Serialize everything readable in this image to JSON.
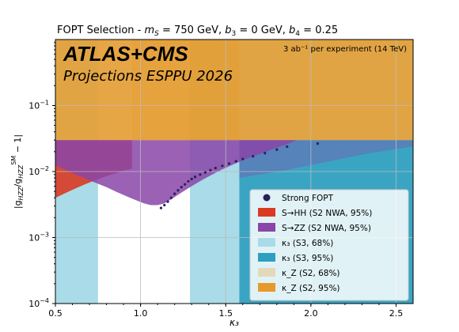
{
  "chart_data": {
    "type": "area",
    "title": "FOPT Selection - m_S = 750 GeV, b_3 = 0 GeV, b_4 = 0.25",
    "title_parts": {
      "lead": "FOPT Selection - ",
      "ms_sym": "m",
      "ms_sub": "S",
      "ms_val": " = 750 GeV, ",
      "b3_sym": "b",
      "b3_sub": "3",
      "b3_val": " = 0 GeV, ",
      "b4_sym": "b",
      "b4_sub": "4",
      "b4_val": " = 0.25"
    },
    "experiment_label": "ATLAS+CMS",
    "projection_label": "Projections ESPPU 2026",
    "luminosity_text": "3 ab⁻¹ per experiment (14 TeV)",
    "xlabel": "κ₃",
    "ylabel": "|g_HZZ/g_HZZ^SM − 1|",
    "ylabel_parts": {
      "a": "|g",
      "sub1": "HZZ",
      "b": "/g",
      "sub2": "HZZ",
      "sup2": "SM",
      "c": " − 1|"
    },
    "xlim": [
      0.5,
      2.6
    ],
    "ylim": [
      0.0001,
      1.0
    ],
    "yscale": "log",
    "grid": true,
    "x_ticks": [
      {
        "value": 0.5,
        "label": "0.5"
      },
      {
        "value": 1.0,
        "label": "1.0"
      },
      {
        "value": 1.5,
        "label": "1.5"
      },
      {
        "value": 2.0,
        "label": "2.0"
      },
      {
        "value": 2.5,
        "label": "2.5"
      }
    ],
    "y_ticks": [
      {
        "value": 0.0001,
        "base": "10",
        "exp": "−4"
      },
      {
        "value": 0.001,
        "base": "10",
        "exp": "−3"
      },
      {
        "value": 0.01,
        "base": "10",
        "exp": "−2"
      },
      {
        "value": 0.1,
        "base": "10",
        "exp": "−1"
      }
    ],
    "legend_position": "lower-right",
    "series": [
      {
        "name": "Strong FOPT",
        "kind": "scatter",
        "color": "#2a1e5c",
        "points": [
          [
            1.12,
            0.0028
          ],
          [
            1.14,
            0.0031
          ],
          [
            1.16,
            0.0035
          ],
          [
            1.18,
            0.004
          ],
          [
            1.2,
            0.0046
          ],
          [
            1.22,
            0.0052
          ],
          [
            1.24,
            0.0058
          ],
          [
            1.26,
            0.0064
          ],
          [
            1.28,
            0.0071
          ],
          [
            1.3,
            0.0077
          ],
          [
            1.32,
            0.0083
          ],
          [
            1.35,
            0.009
          ],
          [
            1.38,
            0.0097
          ],
          [
            1.41,
            0.0105
          ],
          [
            1.44,
            0.0113
          ],
          [
            1.48,
            0.0122
          ],
          [
            1.52,
            0.0132
          ],
          [
            1.56,
            0.0143
          ],
          [
            1.6,
            0.0155
          ],
          [
            1.66,
            0.017
          ],
          [
            1.73,
            0.019
          ],
          [
            1.8,
            0.0215
          ],
          [
            1.86,
            0.0238
          ],
          [
            2.04,
            0.0265
          ]
        ]
      },
      {
        "name": "S→HH  (S2 NWA, 95%)",
        "kind": "band",
        "color": "#d93a22"
      },
      {
        "name": "S→ZZ  (S2 NWA, 95%)",
        "kind": "band",
        "color": "#8a45a8"
      },
      {
        "name": "κ₃  (S3, 68%)",
        "kind": "band",
        "color": "#a9dbe8",
        "x_excluded_below": 0.75,
        "x_excluded_above": 1.29
      },
      {
        "name": "κ₃  (S3, 95%)",
        "kind": "band",
        "color": "#2e9fbf",
        "x_excluded_above": 1.58
      },
      {
        "name": "κ_Z  (S2, 68%)",
        "kind": "band",
        "color": "#e3d9b8",
        "y_excluded_above": 0.03
      },
      {
        "name": "κ_Z  (S2, 95%)",
        "kind": "band",
        "color": "#e59a2b",
        "y_excluded_above": 0.03
      }
    ],
    "legend": [
      {
        "label": "Strong FOPT",
        "marker": "dot",
        "color": "#2a1e5c"
      },
      {
        "label": "S→HH  (S2 NWA, 95%)",
        "marker": "rect",
        "color": "#d93a22"
      },
      {
        "label": "S→ZZ  (S2 NWA, 95%)",
        "marker": "rect",
        "color": "#8a45a8"
      },
      {
        "label": "κ₃  (S3, 68%)",
        "marker": "rect",
        "color": "#a9dbe8"
      },
      {
        "label": "κ₃  (S3, 95%)",
        "marker": "rect",
        "color": "#2e9fbf"
      },
      {
        "label": "κ_Z  (S2, 68%)",
        "marker": "rect",
        "color": "#e3d9b8"
      },
      {
        "label": "κ_Z  (S2, 95%)",
        "marker": "rect",
        "color": "#e59a2b"
      }
    ]
  }
}
